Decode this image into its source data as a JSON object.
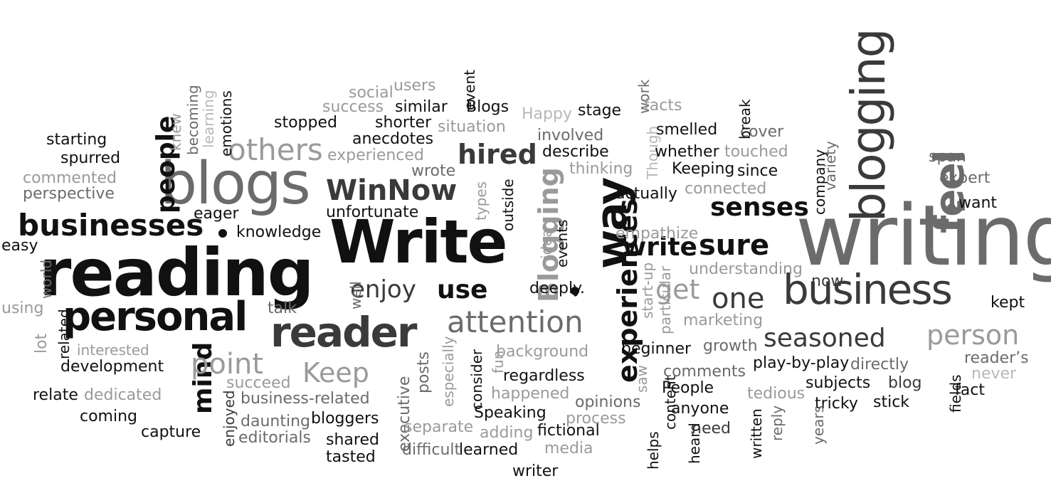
{
  "palette": {
    "black": "#111111",
    "dark": "#3a3a3a",
    "mid": "#6b6b6b",
    "light": "#9a9a9a",
    "pale": "#b8b8b8"
  },
  "words": [
    {
      "id": "writing",
      "text": "writing",
      "tone": "mid",
      "vertical": false
    },
    {
      "id": "reading",
      "text": "reading",
      "tone": "black",
      "vertical": false
    },
    {
      "id": "blogs",
      "text": "blogs",
      "tone": "mid",
      "vertical": false
    },
    {
      "id": "write",
      "text": "Write",
      "tone": "black",
      "vertical": false
    },
    {
      "id": "business",
      "text": "business",
      "tone": "dark",
      "vertical": false
    },
    {
      "id": "personal",
      "text": "personal",
      "tone": "black",
      "vertical": false
    },
    {
      "id": "reader",
      "text": "reader",
      "tone": "dark",
      "vertical": false
    },
    {
      "id": "blogging",
      "text": "blogging",
      "tone": "dark",
      "vertical": true
    },
    {
      "id": "way",
      "text": "way",
      "tone": "black",
      "vertical": true
    },
    {
      "id": "feel",
      "text": "feel",
      "tone": "mid",
      "vertical": true
    },
    {
      "id": "experiences",
      "text": "experiences",
      "tone": "black",
      "vertical": true
    },
    {
      "id": "blogging2",
      "text": "Blogging",
      "tone": "light",
      "vertical": true
    },
    {
      "id": "businesses",
      "text": "businesses",
      "tone": "black",
      "vertical": false
    },
    {
      "id": "others",
      "text": "others",
      "tone": "light",
      "vertical": false
    },
    {
      "id": "winnow",
      "text": "WinNow",
      "tone": "dark",
      "vertical": false
    },
    {
      "id": "attention",
      "text": "attention",
      "tone": "mid",
      "vertical": false
    },
    {
      "id": "seasoned",
      "text": "seasoned",
      "tone": "dark",
      "vertical": false
    },
    {
      "id": "person",
      "text": "person",
      "tone": "light",
      "vertical": false
    },
    {
      "id": "senses",
      "text": "senses",
      "tone": "black",
      "vertical": false
    },
    {
      "id": "people",
      "text": "people",
      "tone": "black",
      "vertical": true
    },
    {
      "id": "mind",
      "text": "mind",
      "tone": "black",
      "vertical": true
    },
    {
      "id": "point",
      "text": "point",
      "tone": "light",
      "vertical": false
    },
    {
      "id": "keep",
      "text": "Keep",
      "tone": "light",
      "vertical": false
    },
    {
      "id": "enjoy",
      "text": "enjoy",
      "tone": "dark",
      "vertical": false
    },
    {
      "id": "use",
      "text": "use",
      "tone": "black",
      "vertical": false
    },
    {
      "id": "hired",
      "text": "hired",
      "tone": "dark",
      "vertical": false
    },
    {
      "id": "write2",
      "text": "write",
      "tone": "black",
      "vertical": false
    },
    {
      "id": "sure",
      "text": "sure",
      "tone": "black",
      "vertical": false
    },
    {
      "id": "one",
      "text": "one",
      "tone": "dark",
      "vertical": false
    },
    {
      "id": "get",
      "text": "get",
      "tone": "light",
      "vertical": false
    },
    {
      "id": "starting",
      "text": "starting",
      "tone": "black",
      "vertical": false
    },
    {
      "id": "spurred",
      "text": "spurred",
      "tone": "black",
      "vertical": false
    },
    {
      "id": "commented",
      "text": "commented",
      "tone": "light",
      "vertical": false
    },
    {
      "id": "perspective",
      "text": "perspective",
      "tone": "mid",
      "vertical": false
    },
    {
      "id": "easy",
      "text": "easy",
      "tone": "black",
      "vertical": false
    },
    {
      "id": "using",
      "text": "using",
      "tone": "light",
      "vertical": false
    },
    {
      "id": "world",
      "text": "world",
      "tone": "mid",
      "vertical": true
    },
    {
      "id": "lot",
      "text": "lot",
      "tone": "light",
      "vertical": true
    },
    {
      "id": "related",
      "text": "related",
      "tone": "black",
      "vertical": true
    },
    {
      "id": "interested",
      "text": "interested",
      "tone": "light",
      "vertical": false
    },
    {
      "id": "development",
      "text": "development",
      "tone": "black",
      "vertical": false
    },
    {
      "id": "relate",
      "text": "relate",
      "tone": "black",
      "vertical": false
    },
    {
      "id": "dedicated",
      "text": "dedicated",
      "tone": "light",
      "vertical": false
    },
    {
      "id": "coming",
      "text": "coming",
      "tone": "black",
      "vertical": false
    },
    {
      "id": "capture",
      "text": "capture",
      "tone": "black",
      "vertical": false
    },
    {
      "id": "enjoyed",
      "text": "enjoyed",
      "tone": "dark",
      "vertical": true
    },
    {
      "id": "editorials",
      "text": "editorials",
      "tone": "mid",
      "vertical": false
    },
    {
      "id": "daunting",
      "text": "daunting",
      "tone": "mid",
      "vertical": false
    },
    {
      "id": "business-related",
      "text": "business-related",
      "tone": "mid",
      "vertical": false
    },
    {
      "id": "succeed",
      "text": "succeed",
      "tone": "light",
      "vertical": false
    },
    {
      "id": "bloggers",
      "text": "bloggers",
      "tone": "black",
      "vertical": false
    },
    {
      "id": "shared",
      "text": "shared",
      "tone": "black",
      "vertical": false
    },
    {
      "id": "tasted",
      "text": "tasted",
      "tone": "black",
      "vertical": false
    },
    {
      "id": "executive",
      "text": "executive",
      "tone": "mid",
      "vertical": true
    },
    {
      "id": "posts",
      "text": "posts",
      "tone": "mid",
      "vertical": true
    },
    {
      "id": "separate",
      "text": "separate",
      "tone": "light",
      "vertical": false
    },
    {
      "id": "difficult",
      "text": "difficult",
      "tone": "mid",
      "vertical": false
    },
    {
      "id": "learned",
      "text": "learned",
      "tone": "black",
      "vertical": false
    },
    {
      "id": "adding",
      "text": "adding",
      "tone": "light",
      "vertical": false
    },
    {
      "id": "speaking",
      "text": "Speaking",
      "tone": "black",
      "vertical": false
    },
    {
      "id": "happened",
      "text": "happened",
      "tone": "light",
      "vertical": false
    },
    {
      "id": "regardless",
      "text": "regardless",
      "tone": "black",
      "vertical": false
    },
    {
      "id": "background",
      "text": "background",
      "tone": "light",
      "vertical": false
    },
    {
      "id": "especially",
      "text": "especially",
      "tone": "light",
      "vertical": true
    },
    {
      "id": "consider",
      "text": "consider",
      "tone": "black",
      "vertical": true
    },
    {
      "id": "fun",
      "text": "fun",
      "tone": "light",
      "vertical": true
    },
    {
      "id": "fictional",
      "text": "fictional",
      "tone": "black",
      "vertical": false
    },
    {
      "id": "writer",
      "text": "writer",
      "tone": "black",
      "vertical": false
    },
    {
      "id": "media",
      "text": "media",
      "tone": "light",
      "vertical": false
    },
    {
      "id": "process",
      "text": "process",
      "tone": "light",
      "vertical": false
    },
    {
      "id": "opinions",
      "text": "opinions",
      "tone": "mid",
      "vertical": false
    },
    {
      "id": "saw",
      "text": "saw",
      "tone": "light",
      "vertical": true
    },
    {
      "id": "helps",
      "text": "helps",
      "tone": "black",
      "vertical": true
    },
    {
      "id": "content",
      "text": "content",
      "tone": "black",
      "vertical": true
    },
    {
      "id": "heard",
      "text": "heard",
      "tone": "black",
      "vertical": true
    },
    {
      "id": "people2",
      "text": "People",
      "tone": "black",
      "vertical": false
    },
    {
      "id": "comments",
      "text": "comments",
      "tone": "mid",
      "vertical": false
    },
    {
      "id": "anyone",
      "text": "anyone",
      "tone": "black",
      "vertical": false
    },
    {
      "id": "need",
      "text": "need",
      "tone": "dark",
      "vertical": false
    },
    {
      "id": "written",
      "text": "written",
      "tone": "black",
      "vertical": true
    },
    {
      "id": "reply",
      "text": "reply",
      "tone": "mid",
      "vertical": true
    },
    {
      "id": "tedious",
      "text": "tedious",
      "tone": "light",
      "vertical": false
    },
    {
      "id": "subjects",
      "text": "subjects",
      "tone": "black",
      "vertical": false
    },
    {
      "id": "tricky",
      "text": "tricky",
      "tone": "black",
      "vertical": false
    },
    {
      "id": "years",
      "text": "years",
      "tone": "mid",
      "vertical": true
    },
    {
      "id": "stick",
      "text": "stick",
      "tone": "black",
      "vertical": false
    },
    {
      "id": "blog",
      "text": "blog",
      "tone": "dark",
      "vertical": false
    },
    {
      "id": "fields",
      "text": "fields",
      "tone": "black",
      "vertical": true
    },
    {
      "id": "fact",
      "text": "fact",
      "tone": "black",
      "vertical": false
    },
    {
      "id": "never",
      "text": "never",
      "tone": "pale",
      "vertical": false
    },
    {
      "id": "readers",
      "text": "reader’s",
      "tone": "mid",
      "vertical": false
    },
    {
      "id": "directly",
      "text": "directly",
      "tone": "mid",
      "vertical": false
    },
    {
      "id": "play-by-play",
      "text": "play-by-play",
      "tone": "black",
      "vertical": false
    },
    {
      "id": "growth",
      "text": "growth",
      "tone": "mid",
      "vertical": false
    },
    {
      "id": "beginner",
      "text": "beginner",
      "tone": "black",
      "vertical": false
    },
    {
      "id": "marketing",
      "text": "marketing",
      "tone": "light",
      "vertical": false
    },
    {
      "id": "kept",
      "text": "kept",
      "tone": "black",
      "vertical": false
    },
    {
      "id": "now",
      "text": "now",
      "tone": "dark",
      "vertical": false
    },
    {
      "id": "understanding",
      "text": "understanding",
      "tone": "light",
      "vertical": false
    },
    {
      "id": "particular",
      "text": "particular",
      "tone": "light",
      "vertical": true
    },
    {
      "id": "start-up",
      "text": "start-up",
      "tone": "light",
      "vertical": true
    },
    {
      "id": "deeply",
      "text": "deeply.",
      "tone": "black",
      "vertical": false
    },
    {
      "id": "idea",
      "text": "idea",
      "tone": "light",
      "vertical": true
    },
    {
      "id": "events",
      "text": "events",
      "tone": "black",
      "vertical": true
    },
    {
      "id": "outside",
      "text": "outside",
      "tone": "black",
      "vertical": true
    },
    {
      "id": "types",
      "text": "types",
      "tone": "light",
      "vertical": true
    },
    {
      "id": "empathize",
      "text": "empathize",
      "tone": "light",
      "vertical": false
    },
    {
      "id": "actually",
      "text": "actually",
      "tone": "black",
      "vertical": false
    },
    {
      "id": "connected",
      "text": "connected",
      "tone": "light",
      "vertical": false
    },
    {
      "id": "keeping",
      "text": "Keeping",
      "tone": "black",
      "vertical": false
    },
    {
      "id": "since",
      "text": "since",
      "tone": "black",
      "vertical": false
    },
    {
      "id": "company",
      "text": "company",
      "tone": "black",
      "vertical": true
    },
    {
      "id": "variety",
      "text": "variety",
      "tone": "mid",
      "vertical": true
    },
    {
      "id": "span",
      "text": "span",
      "tone": "mid",
      "vertical": false
    },
    {
      "id": "expert",
      "text": "expert",
      "tone": "mid",
      "vertical": false
    },
    {
      "id": "want",
      "text": "want",
      "tone": "black",
      "vertical": false
    },
    {
      "id": "thinking",
      "text": "thinking",
      "tone": "light",
      "vertical": false
    },
    {
      "id": "though",
      "text": "Though",
      "tone": "pale",
      "vertical": true
    },
    {
      "id": "whether",
      "text": "whether",
      "tone": "black",
      "vertical": false
    },
    {
      "id": "touched",
      "text": "touched",
      "tone": "light",
      "vertical": false
    },
    {
      "id": "cover",
      "text": "cover",
      "tone": "mid",
      "vertical": false
    },
    {
      "id": "smelled",
      "text": "smelled",
      "tone": "black",
      "vertical": false
    },
    {
      "id": "break",
      "text": "break",
      "tone": "black",
      "vertical": true
    },
    {
      "id": "describe",
      "text": "describe",
      "tone": "black",
      "vertical": false
    },
    {
      "id": "involved",
      "text": "involved",
      "tone": "mid",
      "vertical": false
    },
    {
      "id": "happy",
      "text": "Happy",
      "tone": "pale",
      "vertical": false
    },
    {
      "id": "stage",
      "text": "stage",
      "tone": "black",
      "vertical": false
    },
    {
      "id": "work",
      "text": "work",
      "tone": "mid",
      "vertical": true
    },
    {
      "id": "facts",
      "text": "facts",
      "tone": "light",
      "vertical": false
    },
    {
      "id": "blogs2",
      "text": "Blogs",
      "tone": "black",
      "vertical": false
    },
    {
      "id": "event",
      "text": "event",
      "tone": "black",
      "vertical": true
    },
    {
      "id": "users",
      "text": "users",
      "tone": "light",
      "vertical": false
    },
    {
      "id": "social",
      "text": "social",
      "tone": "light",
      "vertical": false
    },
    {
      "id": "success",
      "text": "success",
      "tone": "light",
      "vertical": false
    },
    {
      "id": "similar",
      "text": "similar",
      "tone": "black",
      "vertical": false
    },
    {
      "id": "shorter",
      "text": "shorter",
      "tone": "black",
      "vertical": false
    },
    {
      "id": "situation",
      "text": "situation",
      "tone": "light",
      "vertical": false
    },
    {
      "id": "stopped",
      "text": "stopped",
      "tone": "black",
      "vertical": false
    },
    {
      "id": "anecdotes",
      "text": "anecdotes",
      "tone": "black",
      "vertical": false
    },
    {
      "id": "experienced",
      "text": "experienced",
      "tone": "light",
      "vertical": false
    },
    {
      "id": "wrote",
      "text": "wrote",
      "tone": "mid",
      "vertical": false
    },
    {
      "id": "unfortunate",
      "text": "unfortunate",
      "tone": "black",
      "vertical": false
    },
    {
      "id": "eager",
      "text": "eager",
      "tone": "black",
      "vertical": false
    },
    {
      "id": "knowledge",
      "text": "knowledge",
      "tone": "black",
      "vertical": false
    },
    {
      "id": "talk",
      "text": "talk",
      "tone": "mid",
      "vertical": false
    },
    {
      "id": "well",
      "text": "well",
      "tone": "mid",
      "vertical": true
    },
    {
      "id": "knew",
      "text": "knew",
      "tone": "light",
      "vertical": true
    },
    {
      "id": "becoming",
      "text": "becoming",
      "tone": "mid",
      "vertical": true
    },
    {
      "id": "learning",
      "text": "learning",
      "tone": "pale",
      "vertical": true
    },
    {
      "id": "emotions",
      "text": "emotions",
      "tone": "black",
      "vertical": true
    }
  ]
}
